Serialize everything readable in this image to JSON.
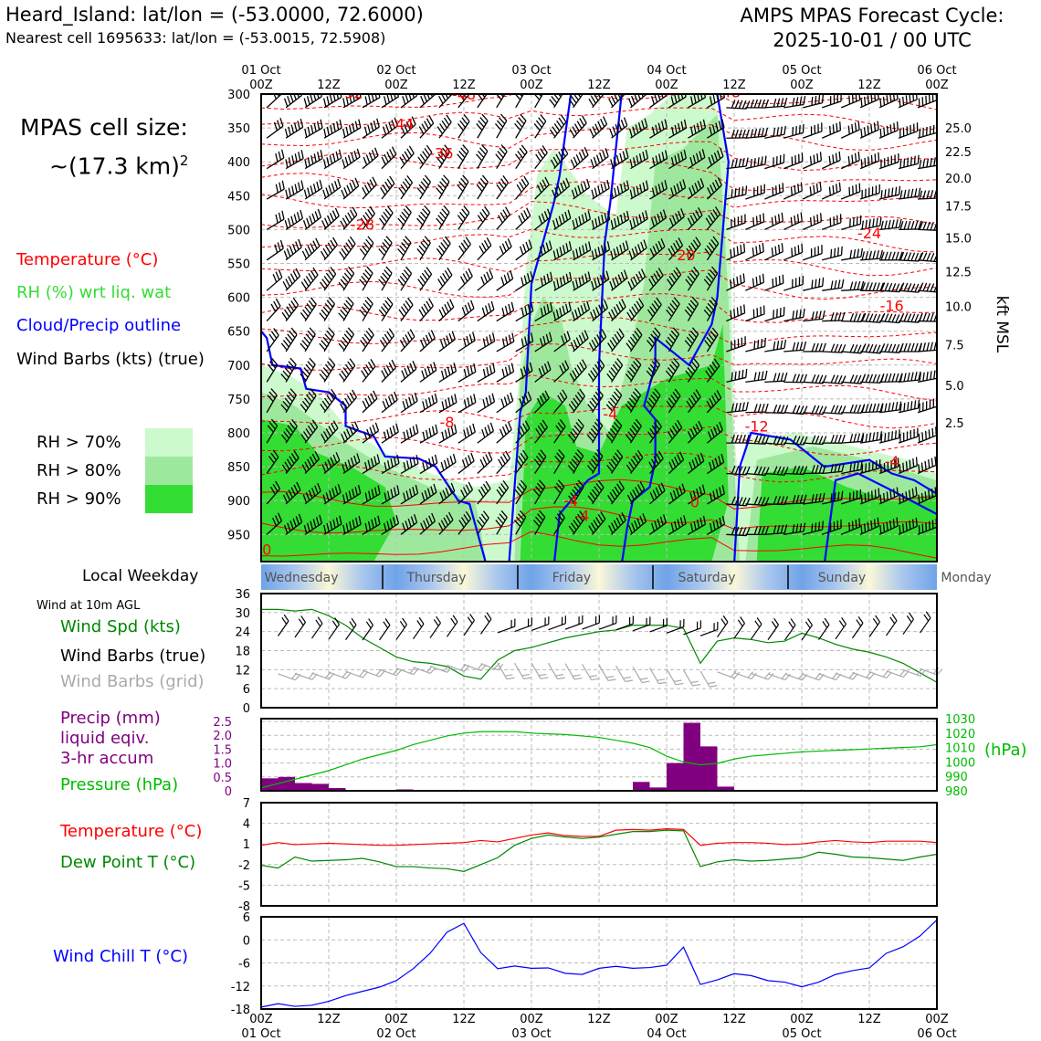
{
  "header": {
    "title": "Heard_Island: lat/lon = (-53.0000, 72.6000)",
    "subtitle": "Nearest cell 1695633: lat/lon = (-53.0015, 72.5908)",
    "forecast_title": "AMPS MPAS Forecast Cycle:",
    "forecast_cycle": "2025-10-01 / 00 UTC"
  },
  "left_panel": {
    "cell_size_label": "MPAS cell size:",
    "cell_size_value": "~(17.3 km)",
    "cell_size_exp": "2",
    "legend_temperature": "Temperature (°C)",
    "legend_rh": "RH (%) wrt liq. wat",
    "legend_cloud": "Cloud/Precip outline",
    "legend_wind": "Wind Barbs (kts) (true)",
    "rh_70": "RH > 70%",
    "rh_80": "RH > 80%",
    "rh_90": "RH > 90%",
    "local_weekday": "Local Weekday",
    "wind_10m": "Wind at 10m AGL",
    "wind_spd": "Wind Spd (kts)",
    "wind_barbs_true": "Wind Barbs (true)",
    "wind_barbs_grid": "Wind Barbs (grid)",
    "precip_1": "Precip (mm)",
    "precip_2": "liquid eqiv.",
    "precip_3": "3-hr accum",
    "pressure": "Pressure (hPa)",
    "temperature": "Temperature (°C)",
    "dewpoint": "Dew Point T (°C)",
    "windchill": "Wind Chill T (°C)"
  },
  "colors": {
    "temperature": "#ff0000",
    "rh_legend": "#33dd33",
    "cloud_outline": "#0000ff",
    "wind_spd": "#008800",
    "wind_grid": "#aaaaaa",
    "precip": "#800080",
    "pressure": "#00bb00",
    "rh70": "#ccfacc",
    "rh80": "#9ee89e",
    "rh90": "#33dd33",
    "windchill": "#0000ff"
  },
  "time_axis": {
    "top_labels": [
      {
        "t": 0,
        "a": "01 Oct",
        "b": "00Z"
      },
      {
        "t": 12,
        "a": "",
        "b": "12Z"
      },
      {
        "t": 24,
        "a": "02 Oct",
        "b": "00Z"
      },
      {
        "t": 36,
        "a": "",
        "b": "12Z"
      },
      {
        "t": 48,
        "a": "03 Oct",
        "b": "00Z"
      },
      {
        "t": 60,
        "a": "",
        "b": "12Z"
      },
      {
        "t": 72,
        "a": "04 Oct",
        "b": "00Z"
      },
      {
        "t": 84,
        "a": "",
        "b": "12Z"
      },
      {
        "t": 96,
        "a": "05 Oct",
        "b": "00Z"
      },
      {
        "t": 108,
        "a": "",
        "b": "12Z"
      },
      {
        "t": 120,
        "a": "06 Oct",
        "b": "00Z"
      }
    ],
    "bottom_labels": [
      {
        "t": 0,
        "a": "00Z",
        "b": "01 Oct"
      },
      {
        "t": 12,
        "a": "12Z",
        "b": ""
      },
      {
        "t": 24,
        "a": "00Z",
        "b": "02 Oct"
      },
      {
        "t": 36,
        "a": "12Z",
        "b": ""
      },
      {
        "t": 48,
        "a": "00Z",
        "b": "03 Oct"
      },
      {
        "t": 60,
        "a": "12Z",
        "b": ""
      },
      {
        "t": 72,
        "a": "00Z",
        "b": "04 Oct"
      },
      {
        "t": 84,
        "a": "12Z",
        "b": ""
      },
      {
        "t": 96,
        "a": "00Z",
        "b": "05 Oct"
      },
      {
        "t": 108,
        "a": "12Z",
        "b": ""
      },
      {
        "t": 120,
        "a": "00Z",
        "b": "06 Oct"
      }
    ],
    "weekdays": [
      {
        "t": 0,
        "label": "Wednesday"
      },
      {
        "t": 24,
        "label": "Thursday"
      },
      {
        "t": 48,
        "label": "Friday"
      },
      {
        "t": 72,
        "label": "Saturday"
      },
      {
        "t": 96,
        "label": "Sunday"
      },
      {
        "t": 120,
        "label": "Monday"
      }
    ]
  },
  "chart_data": [
    {
      "type": "heatmap",
      "name": "cross-section",
      "x_range_hours": [
        0,
        120
      ],
      "y_pressure_hpa": [
        300,
        990
      ],
      "y_ticks": [
        300,
        350,
        400,
        450,
        500,
        550,
        600,
        650,
        700,
        750,
        800,
        850,
        900,
        950
      ],
      "right_axis_label": "kft MSL",
      "right_ticks": [
        {
          "p": 350,
          "label": "25.0"
        },
        {
          "p": 385,
          "label": "22.5"
        },
        {
          "p": 424,
          "label": "20.0"
        },
        {
          "p": 465,
          "label": "17.5"
        },
        {
          "p": 512,
          "label": "15.0"
        },
        {
          "p": 562,
          "label": "12.5"
        },
        {
          "p": 613,
          "label": "10.0"
        },
        {
          "p": 670,
          "label": "7.5"
        },
        {
          "p": 730,
          "label": "5.0"
        },
        {
          "p": 785,
          "label": "2.5"
        }
      ],
      "temperature_labels": [
        {
          "t": 16,
          "p": 306,
          "label": "-52"
        },
        {
          "t": 36,
          "p": 308,
          "label": "-48"
        },
        {
          "t": 63,
          "p": 302,
          "label": "-48"
        },
        {
          "t": 83,
          "p": 305,
          "label": "-48"
        },
        {
          "t": 25,
          "p": 352,
          "label": "-44"
        },
        {
          "t": 32,
          "p": 395,
          "label": "-36"
        },
        {
          "t": 18,
          "p": 500,
          "label": "-28"
        },
        {
          "t": 75,
          "p": 545,
          "label": "-20"
        },
        {
          "t": 108,
          "p": 513,
          "label": "-24"
        },
        {
          "t": 112,
          "p": 620,
          "label": "-16"
        },
        {
          "t": 33,
          "p": 792,
          "label": "-8"
        },
        {
          "t": 62,
          "p": 780,
          "label": "-4"
        },
        {
          "t": 88,
          "p": 798,
          "label": "-12"
        },
        {
          "t": 55,
          "p": 908,
          "label": "-4"
        },
        {
          "t": 57,
          "p": 930,
          "label": "-4"
        },
        {
          "t": 77,
          "p": 910,
          "label": "0"
        },
        {
          "t": 112,
          "p": 850,
          "label": "-4"
        },
        {
          "t": 1,
          "p": 980,
          "label": "0"
        }
      ]
    },
    {
      "type": "line",
      "name": "wind10m",
      "yticks": [
        0,
        6,
        12,
        18,
        24,
        30,
        36
      ],
      "ylim": [
        0,
        36
      ],
      "x": [
        0,
        3,
        6,
        9,
        12,
        15,
        18,
        21,
        24,
        27,
        30,
        33,
        36,
        39,
        42,
        45,
        48,
        51,
        54,
        57,
        60,
        63,
        66,
        69,
        72,
        75,
        78,
        81,
        84,
        87,
        90,
        93,
        96,
        99,
        102,
        105,
        108,
        111,
        114,
        117,
        120
      ],
      "wind_spd": [
        31,
        31,
        30.5,
        31,
        29,
        26,
        22,
        19,
        16,
        14.5,
        14,
        13,
        10,
        9,
        15,
        18,
        19,
        20.5,
        22,
        23,
        24,
        24.5,
        26,
        26,
        26,
        25,
        14,
        21,
        22,
        21.5,
        20.5,
        21,
        23.5,
        22,
        20,
        18.5,
        17.5,
        16,
        14,
        11,
        8
      ]
    },
    {
      "type": "bar",
      "name": "precip_pressure",
      "precip_yticks": [
        "0",
        "0.5",
        "1.0",
        "1.5",
        "2.0",
        "2.5"
      ],
      "precip_ylim": [
        0,
        2.6
      ],
      "pressure_yticks": [
        "980",
        "990",
        "1000",
        "1010",
        "1020",
        "1030"
      ],
      "pressure_ylabel": "(hPa)",
      "pressure_ylim": [
        980,
        1030
      ],
      "precip_bars": [
        {
          "t": 0,
          "v": 0.45
        },
        {
          "t": 3,
          "v": 0.5
        },
        {
          "t": 6,
          "v": 0.28
        },
        {
          "t": 9,
          "v": 0.25
        },
        {
          "t": 12,
          "v": 0.1
        },
        {
          "t": 21,
          "v": 0.03
        },
        {
          "t": 24,
          "v": 0.05
        },
        {
          "t": 66,
          "v": 0.32
        },
        {
          "t": 69,
          "v": 0.12
        },
        {
          "t": 72,
          "v": 1.0
        },
        {
          "t": 75,
          "v": 2.45
        },
        {
          "t": 78,
          "v": 1.6
        },
        {
          "t": 81,
          "v": 0.15
        }
      ],
      "pressure_x": [
        0,
        3,
        6,
        9,
        12,
        15,
        18,
        21,
        24,
        27,
        30,
        33,
        36,
        39,
        42,
        45,
        48,
        51,
        54,
        57,
        60,
        63,
        66,
        69,
        72,
        75,
        78,
        81,
        84,
        87,
        90,
        93,
        96,
        99,
        102,
        105,
        108,
        111,
        114,
        117,
        120
      ],
      "pressure": [
        982,
        985,
        988,
        991,
        994,
        998,
        1002,
        1005,
        1008,
        1012,
        1015,
        1018,
        1020,
        1021,
        1021,
        1021,
        1020,
        1019.5,
        1019,
        1018,
        1017,
        1015,
        1013,
        1010,
        1004,
        1000,
        998,
        999,
        1002,
        1004,
        1005,
        1006,
        1007,
        1007.5,
        1008,
        1008.5,
        1009,
        1009.5,
        1010,
        1010.5,
        1012
      ]
    },
    {
      "type": "line",
      "name": "temperature_dewpoint",
      "yticks": [
        -8,
        -5,
        -2,
        1,
        4,
        7
      ],
      "ylim": [
        -8,
        7
      ],
      "x": [
        0,
        3,
        6,
        9,
        12,
        15,
        18,
        21,
        24,
        27,
        30,
        33,
        36,
        39,
        42,
        45,
        48,
        51,
        54,
        57,
        60,
        63,
        66,
        69,
        72,
        75,
        78,
        81,
        84,
        87,
        90,
        93,
        96,
        99,
        102,
        105,
        108,
        111,
        114,
        117,
        120
      ],
      "temperature": [
        0.8,
        1.2,
        0.9,
        1.0,
        1.1,
        1.0,
        0.9,
        0.8,
        0.8,
        0.9,
        1.0,
        1.1,
        1.2,
        1.5,
        1.3,
        1.8,
        2.3,
        2.6,
        2.2,
        2.1,
        2.1,
        3.0,
        3.1,
        3.0,
        3.2,
        3.1,
        0.8,
        1.1,
        1.2,
        1.2,
        1.1,
        0.9,
        1.0,
        1.3,
        1.5,
        1.3,
        1.2,
        1.4,
        1.4,
        1.4,
        1.2
      ],
      "dewpoint": [
        -2.1,
        -2.5,
        -0.9,
        -1.5,
        -1.4,
        -1.3,
        -1.1,
        -1.6,
        -2.3,
        -2.3,
        -2.5,
        -2.6,
        -3.0,
        -2.0,
        -1.0,
        0.8,
        1.8,
        2.3,
        2.0,
        1.8,
        2.0,
        2.4,
        2.8,
        2.8,
        3.0,
        2.9,
        -2.3,
        -1.6,
        -1.3,
        -1.5,
        -1.4,
        -1.2,
        -1.0,
        -0.2,
        -0.5,
        -0.9,
        -1.0,
        -1.2,
        -1.4,
        -0.9,
        -0.5
      ]
    },
    {
      "type": "line",
      "name": "windchill",
      "yticks": [
        -18,
        -12,
        -6,
        0,
        6
      ],
      "ylim": [
        -18,
        6
      ],
      "x": [
        0,
        3,
        6,
        9,
        12,
        15,
        18,
        21,
        24,
        27,
        30,
        33,
        36,
        39,
        42,
        45,
        48,
        51,
        54,
        57,
        60,
        63,
        66,
        69,
        72,
        75,
        78,
        81,
        84,
        87,
        90,
        93,
        96,
        99,
        102,
        105,
        108,
        111,
        114,
        117,
        120
      ],
      "windchill": [
        -17.5,
        -16.6,
        -17.3,
        -17,
        -16,
        -14.5,
        -13.4,
        -12.3,
        -10.6,
        -7.5,
        -3.5,
        2,
        4.3,
        -3.3,
        -7.5,
        -6.8,
        -7.4,
        -7.3,
        -8.7,
        -9,
        -7.4,
        -6.9,
        -7.4,
        -7.2,
        -6.6,
        -1.9,
        -11.6,
        -10.4,
        -8.8,
        -9.3,
        -10.6,
        -11,
        -12.2,
        -11,
        -9,
        -8,
        -7.3,
        -3.5,
        -1.8,
        1,
        5.2
      ]
    }
  ]
}
